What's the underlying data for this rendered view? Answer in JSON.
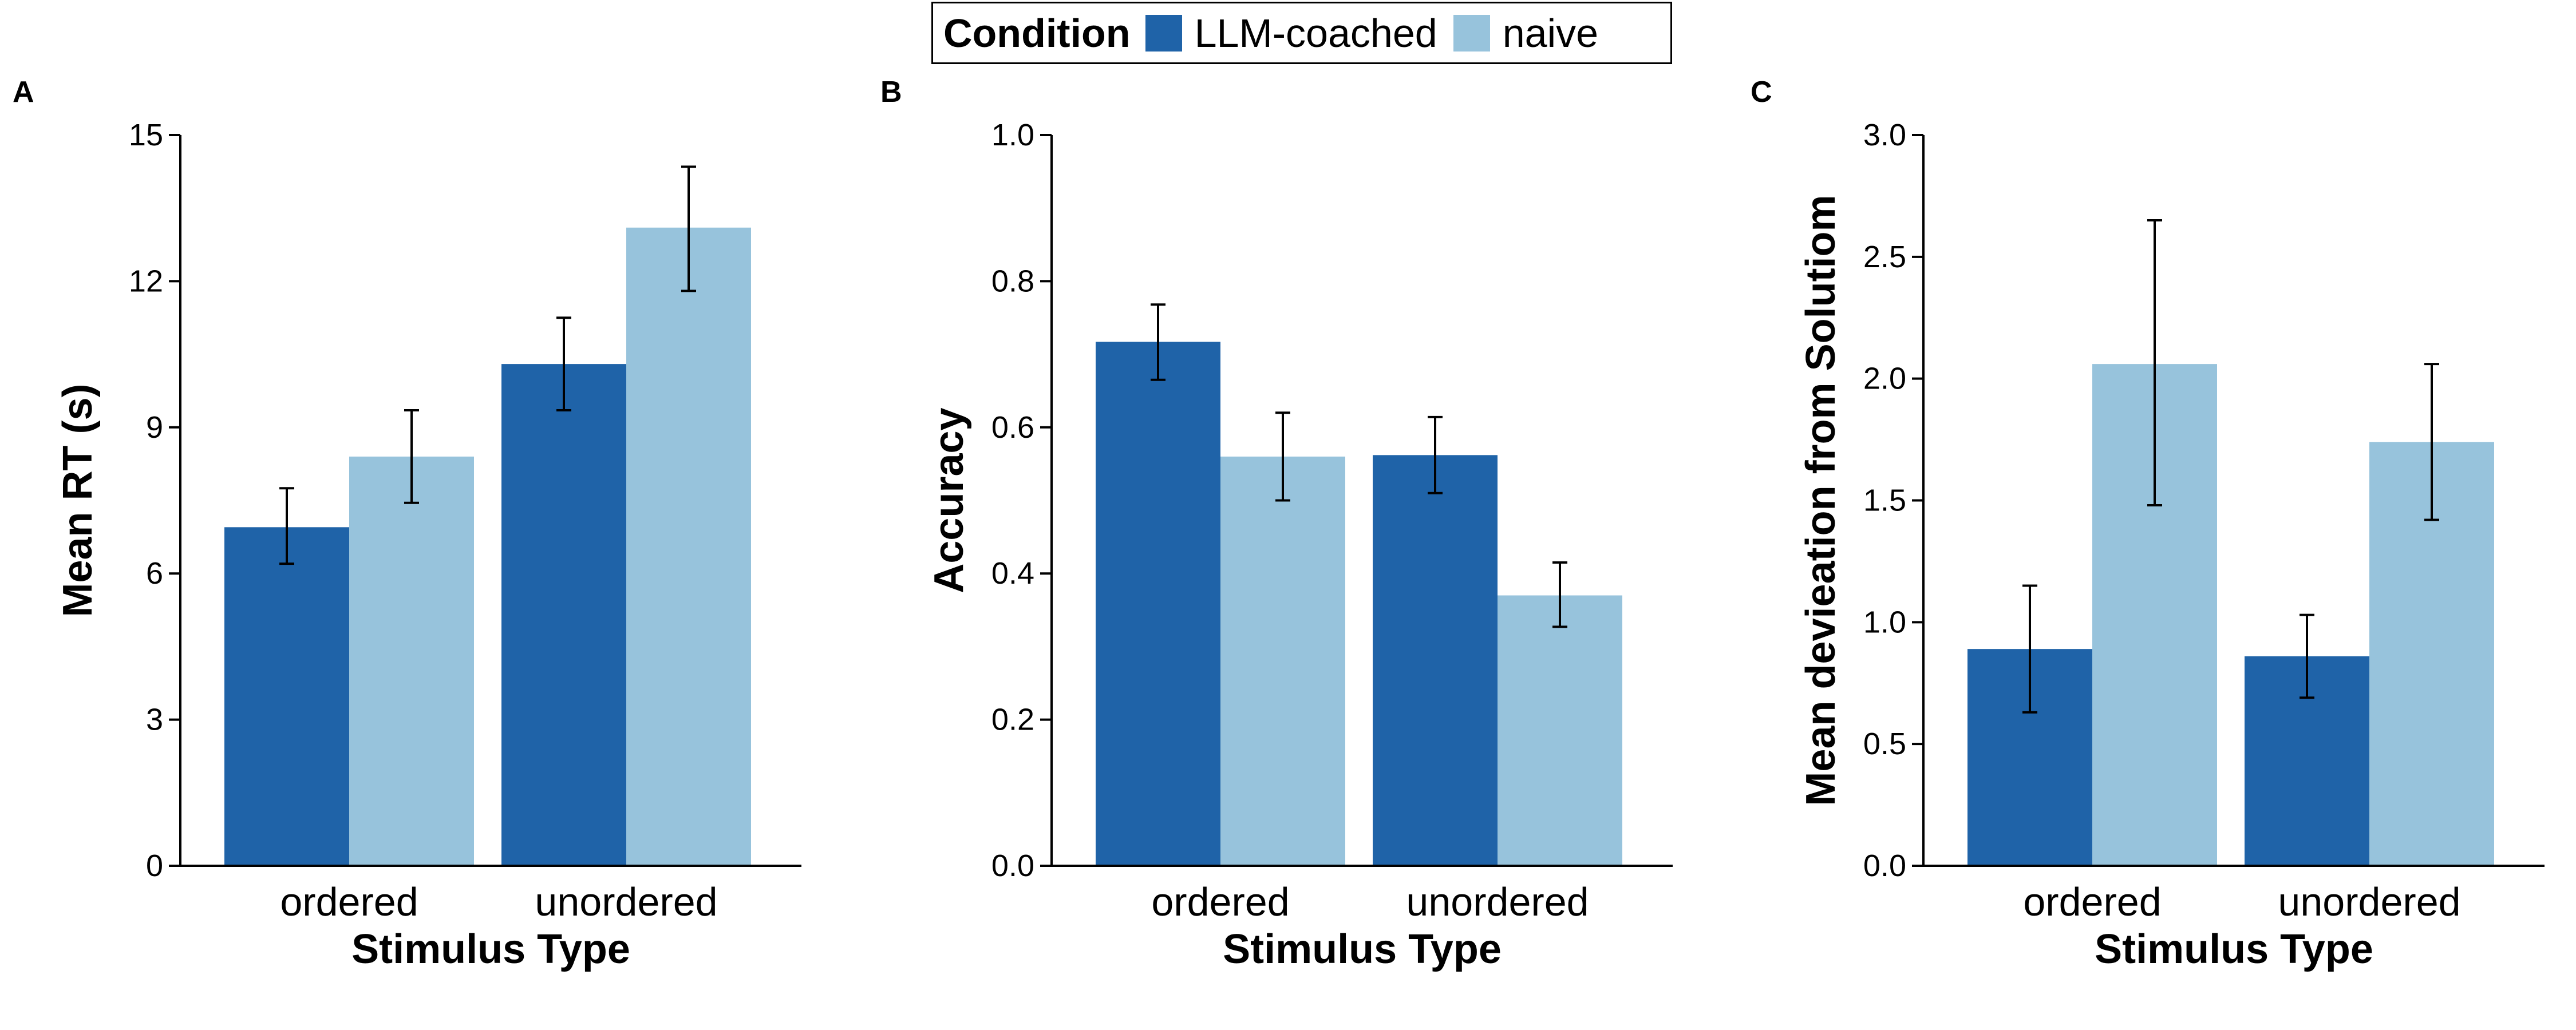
{
  "legend": {
    "title": "Condition",
    "items": [
      {
        "label": "LLM-coached",
        "color": "#1f63a8"
      },
      {
        "label": "naive",
        "color": "#97c3dc"
      }
    ]
  },
  "chart_data": [
    {
      "panel": "A",
      "type": "bar",
      "xlabel": "Stimulus Type",
      "ylabel": "Mean RT (s)",
      "categories": [
        "ordered",
        "unordered"
      ],
      "ylim": [
        0,
        15
      ],
      "yticks": [
        0,
        3,
        6,
        9,
        12,
        15
      ],
      "ytick_labels": [
        "0",
        "3",
        "6",
        "9",
        "12",
        "15"
      ],
      "series": [
        {
          "name": "LLM-coached",
          "values": [
            6.95,
            10.3
          ],
          "error": [
            [
              6.2,
              7.75
            ],
            [
              9.35,
              11.25
            ]
          ]
        },
        {
          "name": "naive",
          "values": [
            8.4,
            13.1
          ],
          "error": [
            [
              7.45,
              9.35
            ],
            [
              11.8,
              14.35
            ]
          ]
        }
      ]
    },
    {
      "panel": "B",
      "type": "bar",
      "xlabel": "Stimulus Type",
      "ylabel": "Accuracy",
      "categories": [
        "ordered",
        "unordered"
      ],
      "ylim": [
        0,
        1
      ],
      "yticks": [
        0,
        0.2,
        0.4,
        0.6,
        0.8,
        1.0
      ],
      "ytick_labels": [
        "0.0",
        "0.2",
        "0.4",
        "0.6",
        "0.8",
        "1.0"
      ],
      "series": [
        {
          "name": "LLM-coached",
          "values": [
            0.717,
            0.562
          ],
          "error": [
            [
              0.665,
              0.768
            ],
            [
              0.51,
              0.614
            ]
          ]
        },
        {
          "name": "naive",
          "values": [
            0.56,
            0.37
          ],
          "error": [
            [
              0.5,
              0.62
            ],
            [
              0.327,
              0.415
            ]
          ]
        }
      ]
    },
    {
      "panel": "C",
      "type": "bar",
      "xlabel": "Stimulus Type",
      "ylabel": "Mean devieation from Solutiom",
      "categories": [
        "ordered",
        "unordered"
      ],
      "ylim": [
        0,
        3
      ],
      "yticks": [
        0,
        0.5,
        1,
        1.5,
        2,
        2.5,
        3
      ],
      "ytick_labels": [
        "0.0",
        "0.5",
        "1.0",
        "1.5",
        "2.0",
        "2.5",
        "3.0"
      ],
      "series": [
        {
          "name": "LLM-coached",
          "values": [
            0.89,
            0.86
          ],
          "error": [
            [
              0.63,
              1.15
            ],
            [
              0.69,
              1.03
            ]
          ]
        },
        {
          "name": "naive",
          "values": [
            2.06,
            1.74
          ],
          "error": [
            [
              1.48,
              2.65
            ],
            [
              1.42,
              2.06
            ]
          ]
        }
      ]
    }
  ]
}
